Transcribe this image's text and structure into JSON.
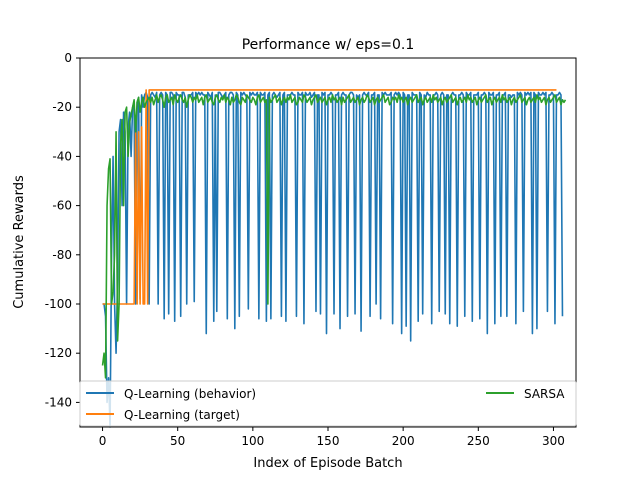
{
  "chart_data": {
    "type": "line",
    "title": "Performance w/ eps=0.1",
    "xlabel": "Index of Episode Batch",
    "ylabel": "Cumulative Rewards",
    "xlim": [
      -15,
      315
    ],
    "ylim": [
      -150,
      0
    ],
    "x_ticks": [
      0,
      50,
      100,
      150,
      200,
      250,
      300
    ],
    "y_ticks": [
      0,
      -20,
      -40,
      -60,
      -80,
      -100,
      -120,
      -140
    ],
    "grid": false,
    "legend": {
      "placement": "lower-center",
      "columns": 2
    },
    "series": [
      {
        "name": "Q-Learning (behavior)",
        "color": "#1f77b4",
        "x_start": 0,
        "x_step": 1,
        "values": [
          -100,
          -100,
          -105,
          -140,
          -130,
          -150,
          -80,
          -40,
          -100,
          -120,
          -90,
          -30,
          -25,
          -60,
          -22,
          -30,
          -100,
          -28,
          -22,
          -40,
          -20,
          -18,
          -100,
          -18,
          -16,
          -98,
          -15,
          -20,
          -15,
          -14,
          -16,
          -100,
          -15,
          -14,
          -15,
          -16,
          -14,
          -100,
          -15,
          -14,
          -15,
          -106,
          -14,
          -15,
          -104,
          -14,
          -14,
          -15,
          -107,
          -14,
          -15,
          -15,
          -105,
          -14,
          -14,
          -16,
          -100,
          -15,
          -15,
          -15,
          -14,
          -99,
          -14,
          -15,
          -14,
          -15,
          -14,
          -15,
          -15,
          -112,
          -14,
          -15,
          -16,
          -14,
          -107,
          -15,
          -103,
          -14,
          -14,
          -15,
          -16,
          -15,
          -14,
          -106,
          -15,
          -14,
          -14,
          -15,
          -110,
          -14,
          -15,
          -105,
          -14,
          -15,
          -14,
          -15,
          -16,
          -102,
          -14,
          -15,
          -14,
          -15,
          -15,
          -14,
          -106,
          -14,
          -15,
          -15,
          -14,
          -107,
          -15,
          -14,
          -106,
          -15,
          -14,
          -15,
          -16,
          -15,
          -14,
          -105,
          -15,
          -14,
          -107,
          -15,
          -15,
          -15,
          -14,
          -15,
          -15,
          -105,
          -14,
          -15,
          -15,
          -14,
          -108,
          -14,
          -15,
          -15,
          -14,
          -16,
          -15,
          -14,
          -103,
          -15,
          -15,
          -104,
          -14,
          -15,
          -14,
          -112,
          -15,
          -15,
          -14,
          -15,
          -104,
          -15,
          -15,
          -14,
          -110,
          -15,
          -14,
          -15,
          -15,
          -105,
          -15,
          -14,
          -14,
          -15,
          -104,
          -15,
          -16,
          -15,
          -111,
          -15,
          -14,
          -15,
          -15,
          -14,
          -105,
          -15,
          -15,
          -14,
          -100,
          -15,
          -15,
          -106,
          -14,
          -15,
          -14,
          -15,
          -15,
          -15,
          -14,
          -108,
          -15,
          -14,
          -15,
          -14,
          -15,
          -112,
          -14,
          -15,
          -109,
          -15,
          -15,
          -115,
          -14,
          -15,
          -15,
          -15,
          -107,
          -14,
          -15,
          -104,
          -15,
          -16,
          -14,
          -15,
          -15,
          -108,
          -15,
          -15,
          -14,
          -15,
          -103,
          -15,
          -14,
          -15,
          -104,
          -15,
          -15,
          -108,
          -15,
          -14,
          -15,
          -15,
          -109,
          -15,
          -15,
          -14,
          -15,
          -105,
          -14,
          -15,
          -15,
          -14,
          -107,
          -15,
          -15,
          -15,
          -14,
          -106,
          -15,
          -15,
          -14,
          -15,
          -112,
          -14,
          -15,
          -15,
          -14,
          -108,
          -15,
          -15,
          -14,
          -105,
          -15,
          -15,
          -14,
          -105,
          -15,
          -15,
          -16,
          -15,
          -15,
          -108,
          -14,
          -15,
          -14,
          -15,
          -103,
          -14,
          -15,
          -14,
          -15,
          -14,
          -112,
          -14,
          -15,
          -110,
          -14,
          -15,
          -15,
          -14,
          -15,
          -14,
          -103,
          -15,
          -15,
          -14,
          -15,
          -108,
          -15,
          -15,
          -14,
          -15,
          -105
        ]
      },
      {
        "name": "Q-Learning (target)",
        "color": "#ff7f0e",
        "x_start": 0,
        "x_step": 1,
        "values": [
          -100,
          -100,
          -100,
          -100,
          -100,
          -100,
          -100,
          -100,
          -100,
          -100,
          -100,
          -100,
          -100,
          -100,
          -100,
          -100,
          -100,
          -100,
          -100,
          -100,
          -100,
          -100,
          -30,
          -100,
          -30,
          -100,
          -28,
          -100,
          -100,
          -13,
          -100,
          -13,
          -13,
          -13,
          -13,
          -13,
          -13,
          -13,
          -13,
          -13,
          -13,
          -13,
          -13,
          -13,
          -13,
          -13,
          -13,
          -13,
          -13,
          -13,
          -13,
          -13,
          -13,
          -13,
          -13,
          -13,
          -13,
          -13,
          -13,
          -13,
          -13,
          -13,
          -13,
          -13,
          -13,
          -13,
          -13,
          -13,
          -13,
          -13,
          -13,
          -13,
          -13,
          -13,
          -13,
          -13,
          -13,
          -13,
          -13,
          -13,
          -13,
          -13,
          -13,
          -13,
          -13,
          -13,
          -13,
          -13,
          -13,
          -13,
          -13,
          -13,
          -13,
          -13,
          -13,
          -13,
          -13,
          -13,
          -13,
          -13,
          -13,
          -13,
          -13,
          -13,
          -13,
          -13,
          -13,
          -13,
          -13,
          -13,
          -13,
          -13,
          -13,
          -13,
          -13,
          -13,
          -13,
          -13,
          -13,
          -13,
          -13,
          -13,
          -13,
          -13,
          -13,
          -13,
          -13,
          -13,
          -13,
          -13,
          -13,
          -13,
          -13,
          -13,
          -13,
          -13,
          -13,
          -13,
          -13,
          -13,
          -13,
          -13,
          -13,
          -13,
          -13,
          -13,
          -13,
          -13,
          -13,
          -13,
          -13,
          -13,
          -13,
          -13,
          -13,
          -13,
          -13,
          -13,
          -13,
          -13,
          -13,
          -13,
          -13,
          -13,
          -13,
          -13,
          -13,
          -13,
          -13,
          -13,
          -13,
          -13,
          -13,
          -13,
          -13,
          -13,
          -13,
          -13,
          -13,
          -13,
          -13,
          -13,
          -13,
          -13,
          -13,
          -13,
          -13,
          -13,
          -13,
          -13,
          -13,
          -13,
          -13,
          -13,
          -13,
          -13,
          -13,
          -13,
          -13,
          -13,
          -13,
          -13,
          -13,
          -13,
          -13,
          -13,
          -13,
          -13,
          -13,
          -13,
          -13,
          -13,
          -13,
          -13,
          -13,
          -13,
          -13,
          -13,
          -13,
          -13,
          -13,
          -13,
          -13,
          -13,
          -13,
          -13,
          -13,
          -13,
          -13,
          -13,
          -13,
          -13,
          -13,
          -13,
          -13,
          -13,
          -13,
          -13,
          -13,
          -13,
          -13,
          -13,
          -13,
          -13,
          -13,
          -13,
          -13,
          -13,
          -13,
          -13,
          -13,
          -13,
          -13,
          -13,
          -13,
          -13,
          -13,
          -13,
          -13,
          -13,
          -13,
          -13,
          -13,
          -13,
          -13,
          -13,
          -13,
          -13,
          -13,
          -13,
          -13,
          -13,
          -13,
          -13,
          -13,
          -13,
          -13,
          -13,
          -13,
          -13,
          -13,
          -13,
          -13,
          -13,
          -13,
          -13,
          -13,
          -13,
          -13,
          -13,
          -13,
          -13,
          -13,
          -13,
          -13,
          -13,
          -13,
          -13,
          -13,
          -13,
          -13,
          -13,
          -13
        ]
      },
      {
        "name": "SARSA",
        "color": "#2ca02c",
        "x_start": 0,
        "x_step": 1,
        "values": [
          -125,
          -120,
          -130,
          -60,
          -45,
          -41,
          -100,
          -95,
          -80,
          -30,
          -115,
          -100,
          -35,
          -25,
          -60,
          -22,
          -20,
          -40,
          -26,
          -23,
          -20,
          -17,
          -30,
          -18,
          -16,
          -22,
          -18,
          -16,
          -20,
          -18,
          -17,
          -16,
          -18,
          -16,
          -19,
          -17,
          -15,
          -18,
          -16,
          -15,
          -17,
          -20,
          -16,
          -15,
          -18,
          -17,
          -16,
          -19,
          -15,
          -17,
          -18,
          -16,
          -15,
          -17,
          -18,
          -16,
          -20,
          -17,
          -15,
          -16,
          -18,
          -16,
          -17,
          -15,
          -18,
          -17,
          -16,
          -19,
          -16,
          -15,
          -18,
          -17,
          -16,
          -18,
          -19,
          -16,
          -15,
          -17,
          -18,
          -16,
          -17,
          -15,
          -18,
          -16,
          -17,
          -19,
          -16,
          -18,
          -17,
          -15,
          -16,
          -18,
          -19,
          -16,
          -17,
          -18,
          -15,
          -16,
          -17,
          -18,
          -16,
          -17,
          -19,
          -16,
          -15,
          -18,
          -17,
          -16,
          -18,
          -17,
          -100,
          -16,
          -18,
          -17,
          -16,
          -15,
          -18,
          -17,
          -16,
          -19,
          -17,
          -16,
          -18,
          -16,
          -17,
          -15,
          -18,
          -17,
          -16,
          -19,
          -18,
          -16,
          -17,
          -18,
          -15,
          -16,
          -18,
          -17,
          -16,
          -19,
          -17,
          -16,
          -15,
          -18,
          -17,
          -16,
          -18,
          -17,
          -16,
          -19,
          -17,
          -16,
          -18,
          -15,
          -17,
          -16,
          -18,
          -17,
          -16,
          -19,
          -16,
          -18,
          -17,
          -16,
          -15,
          -18,
          -17,
          -16,
          -18,
          -17,
          -16,
          -19,
          -17,
          -16,
          -18,
          -17,
          -15,
          -16,
          -18,
          -17,
          -16,
          -19,
          -17,
          -16,
          -18,
          -17,
          -16,
          -15,
          -18,
          -17,
          -16,
          -19,
          -18,
          -16,
          -17,
          -16,
          -18,
          -15,
          -17,
          -16,
          -18,
          -17,
          -16,
          -19,
          -17,
          -16,
          -18,
          -17,
          -16,
          -15,
          -18,
          -17,
          -16,
          -19,
          -17,
          -16,
          -18,
          -17,
          -16,
          -18,
          -15,
          -17,
          -16,
          -18,
          -17,
          -16,
          -19,
          -17,
          -16,
          -18,
          -17,
          -16,
          -15,
          -18,
          -17,
          -16,
          -19,
          -17,
          -16,
          -18,
          -17,
          -16,
          -18,
          -15,
          -17,
          -16,
          -18,
          -17,
          -16,
          -19,
          -17,
          -16,
          -18,
          -17,
          -16,
          -15,
          -18,
          -17,
          -16,
          -19,
          -17,
          -16,
          -18,
          -17,
          -16,
          -18,
          -15,
          -17,
          -16,
          -18,
          -17,
          -16,
          -19,
          -17,
          -16,
          -18,
          -17,
          -16,
          -15,
          -18,
          -17,
          -16,
          -19,
          -17,
          -16,
          -18,
          -17,
          -16,
          -18,
          -15,
          -17,
          -16,
          -18,
          -17,
          -16,
          -19,
          -17,
          -16,
          -18,
          -17,
          -16,
          -15,
          -18,
          -17,
          -16,
          -19,
          -17,
          -18,
          -17
        ]
      }
    ]
  }
}
